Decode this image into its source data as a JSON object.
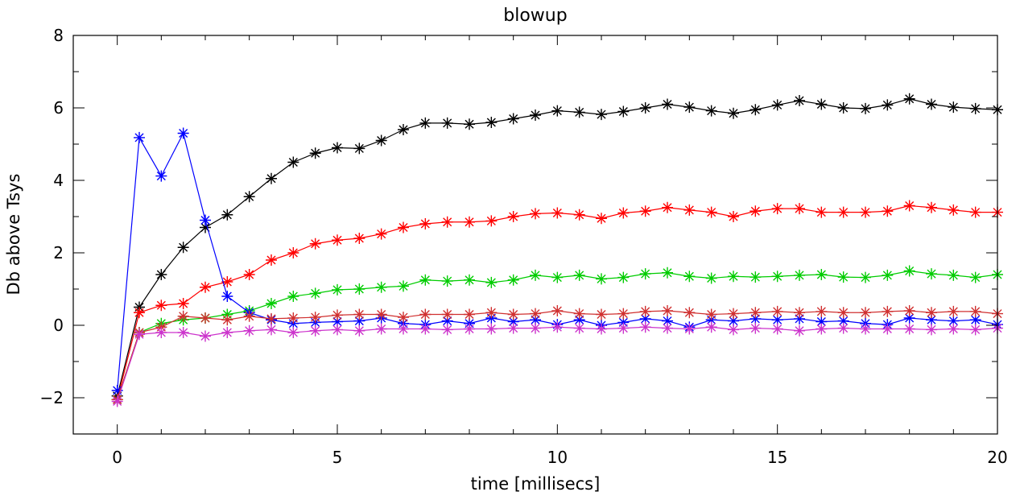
{
  "chart_data": {
    "type": "line",
    "title": "blowup",
    "xlabel": "time [millisecs]",
    "ylabel": "Db above Tsys",
    "xlim": [
      -1,
      20
    ],
    "ylim": [
      -3,
      8
    ],
    "xticks": [
      0,
      5,
      10,
      15,
      20
    ],
    "yticks": [
      -2,
      0,
      2,
      4,
      6,
      8
    ],
    "grid": false,
    "marker": "asterisk",
    "x": [
      0,
      0.5,
      1,
      1.5,
      2,
      2.5,
      3,
      3.5,
      4,
      4.5,
      5,
      5.5,
      6,
      6.5,
      7,
      7.5,
      8,
      8.5,
      9,
      9.5,
      10,
      10.5,
      11,
      11.5,
      12,
      12.5,
      13,
      13.5,
      14,
      14.5,
      15,
      15.5,
      16,
      16.5,
      17,
      17.5,
      18,
      18.5,
      19,
      19.5,
      20
    ],
    "series": [
      {
        "color": "#000000",
        "values": [
          -1.95,
          0.5,
          1.4,
          2.15,
          2.7,
          3.05,
          3.55,
          4.05,
          4.5,
          4.75,
          4.9,
          4.88,
          5.1,
          5.4,
          5.58,
          5.58,
          5.55,
          5.6,
          5.7,
          5.8,
          5.92,
          5.88,
          5.82,
          5.9,
          6.0,
          6.1,
          6.02,
          5.92,
          5.85,
          5.95,
          6.08,
          6.2,
          6.1,
          6.0,
          5.98,
          6.08,
          6.25,
          6.1,
          6.02,
          5.98,
          5.95
        ]
      },
      {
        "color": "#ff0000",
        "values": [
          -2.05,
          0.35,
          0.55,
          0.6,
          1.05,
          1.2,
          1.4,
          1.8,
          2.0,
          2.25,
          2.35,
          2.4,
          2.52,
          2.7,
          2.8,
          2.85,
          2.85,
          2.88,
          3.0,
          3.08,
          3.1,
          3.05,
          2.95,
          3.1,
          3.15,
          3.25,
          3.18,
          3.12,
          3.0,
          3.15,
          3.22,
          3.22,
          3.12,
          3.12,
          3.12,
          3.15,
          3.3,
          3.25,
          3.18,
          3.12,
          3.12
        ]
      },
      {
        "color": "#00cc00",
        "values": [
          -2.05,
          -0.2,
          0.05,
          0.15,
          0.2,
          0.3,
          0.4,
          0.6,
          0.8,
          0.88,
          0.98,
          1.0,
          1.05,
          1.08,
          1.25,
          1.22,
          1.25,
          1.18,
          1.25,
          1.38,
          1.32,
          1.38,
          1.28,
          1.32,
          1.42,
          1.45,
          1.35,
          1.3,
          1.35,
          1.33,
          1.35,
          1.38,
          1.4,
          1.33,
          1.32,
          1.38,
          1.5,
          1.42,
          1.38,
          1.32,
          1.4
        ]
      },
      {
        "color": "#0000ff",
        "values": [
          -1.8,
          5.18,
          4.12,
          5.3,
          2.9,
          0.8,
          0.35,
          0.15,
          0.05,
          0.08,
          0.1,
          0.12,
          0.2,
          0.05,
          0.02,
          0.12,
          0.05,
          0.2,
          0.1,
          0.15,
          0.02,
          0.15,
          0.0,
          0.08,
          0.18,
          0.12,
          -0.05,
          0.15,
          0.12,
          0.18,
          0.15,
          0.18,
          0.1,
          0.12,
          0.05,
          0.02,
          0.2,
          0.15,
          0.12,
          0.15,
          0.02
        ]
      },
      {
        "color": "#d03030",
        "values": [
          -2.05,
          -0.2,
          -0.05,
          0.25,
          0.2,
          0.15,
          0.25,
          0.18,
          0.2,
          0.22,
          0.28,
          0.3,
          0.3,
          0.22,
          0.3,
          0.3,
          0.3,
          0.35,
          0.3,
          0.32,
          0.4,
          0.32,
          0.3,
          0.32,
          0.38,
          0.4,
          0.35,
          0.3,
          0.32,
          0.35,
          0.38,
          0.35,
          0.38,
          0.35,
          0.35,
          0.38,
          0.4,
          0.35,
          0.38,
          0.38,
          0.32
        ]
      },
      {
        "color": "#cc33cc",
        "values": [
          -2.1,
          -0.25,
          -0.2,
          -0.2,
          -0.3,
          -0.2,
          -0.15,
          -0.12,
          -0.2,
          -0.15,
          -0.12,
          -0.15,
          -0.1,
          -0.1,
          -0.1,
          -0.12,
          -0.1,
          -0.1,
          -0.08,
          -0.08,
          -0.05,
          -0.08,
          -0.1,
          -0.08,
          -0.05,
          -0.08,
          -0.1,
          -0.05,
          -0.12,
          -0.08,
          -0.1,
          -0.15,
          -0.1,
          -0.08,
          -0.1,
          -0.1,
          -0.1,
          -0.12,
          -0.1,
          -0.12,
          -0.08
        ]
      }
    ]
  }
}
